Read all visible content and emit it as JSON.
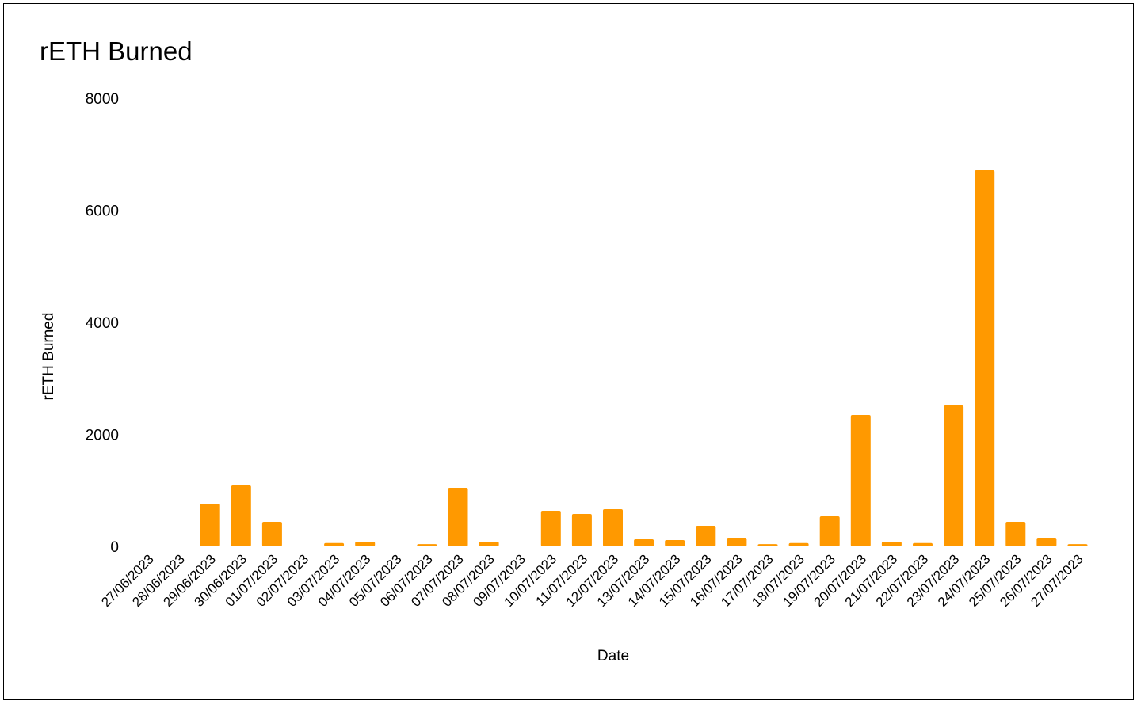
{
  "chart_data": {
    "type": "bar",
    "title": "rETH Burned",
    "x_label": "Date",
    "y_label": "rETH Burned",
    "categories": [
      "27/06/2023",
      "28/06/2023",
      "29/06/2023",
      "30/06/2023",
      "01/07/2023",
      "02/07/2023",
      "03/07/2023",
      "04/07/2023",
      "05/07/2023",
      "06/07/2023",
      "07/07/2023",
      "08/07/2023",
      "09/07/2023",
      "10/07/2023",
      "11/07/2023",
      "12/07/2023",
      "13/07/2023",
      "14/07/2023",
      "15/07/2023",
      "16/07/2023",
      "17/07/2023",
      "18/07/2023",
      "19/07/2023",
      "20/07/2023",
      "21/07/2023",
      "22/07/2023",
      "23/07/2023",
      "24/07/2023",
      "25/07/2023",
      "26/07/2023",
      "27/07/2023"
    ],
    "values": [
      0,
      15,
      763,
      1088,
      438,
      10,
      60,
      85,
      10,
      40,
      1046,
      85,
      10,
      636,
      580,
      664,
      127,
      113,
      367,
      155,
      40,
      60,
      537,
      2346,
      85,
      60,
      2516,
      6714,
      438,
      155,
      40
    ],
    "color": "#ff9900",
    "ylim": [
      0,
      8000
    ],
    "yticks": [
      0,
      2000,
      4000,
      6000,
      8000
    ],
    "grid": false
  }
}
